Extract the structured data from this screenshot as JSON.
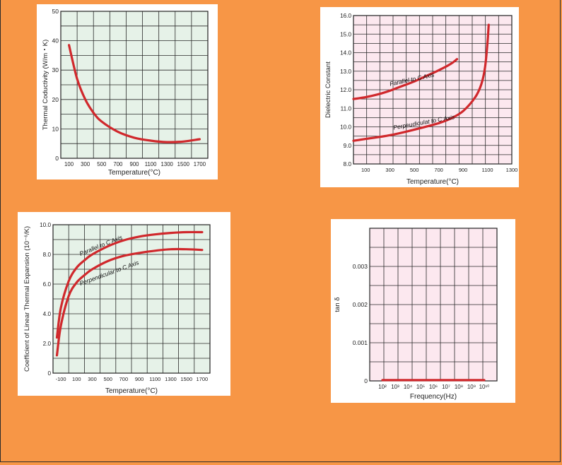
{
  "colors": {
    "page_bg": "#f79646",
    "green_plot": "#e6f2e8",
    "pink_plot": "#fce8ef",
    "curve": "#d0282c"
  },
  "chart_data": [
    {
      "id": "thermal-conductivity",
      "type": "line",
      "xlabel": "Temperature(°C)",
      "ylabel": "Thermal Coductivity (W/m・K)",
      "xlim": [
        0,
        1800
      ],
      "ylim": [
        0,
        50
      ],
      "xticks": [
        100,
        300,
        500,
        700,
        900,
        1100,
        1300,
        1500,
        1700
      ],
      "yticks": [
        0,
        10,
        20,
        30,
        40,
        50
      ],
      "grid": true,
      "series": [
        {
          "x": [
            100,
            200,
            300,
            400,
            500,
            700,
            900,
            1100,
            1300,
            1500,
            1700
          ],
          "y": [
            38.5,
            27,
            20,
            15.5,
            12.5,
            9,
            7,
            6,
            5.5,
            5.7,
            6.5
          ]
        }
      ]
    },
    {
      "id": "dielectric-constant",
      "type": "line",
      "xlabel": "Temperature(°C)",
      "ylabel": "Dielectric Constant",
      "xlim": [
        0,
        1300
      ],
      "ylim": [
        8.0,
        16.0
      ],
      "xticks": [
        100,
        300,
        500,
        700,
        900,
        1100,
        1300
      ],
      "yticks": [
        "8.0",
        "9.0",
        "10.0",
        "11.0",
        "12.0",
        "13.0",
        "14.0",
        "15.0",
        "16.0"
      ],
      "grid": true,
      "series": [
        {
          "name": "Parallel to C Axis",
          "x": [
            0,
            100,
            200,
            300,
            400,
            500,
            600,
            700,
            800,
            850
          ],
          "y": [
            11.5,
            11.6,
            11.75,
            11.95,
            12.2,
            12.45,
            12.75,
            13.05,
            13.4,
            13.65
          ]
        },
        {
          "name": "Perpendicular to C Axis",
          "x": [
            0,
            100,
            300,
            500,
            700,
            800,
            900,
            1000,
            1050,
            1080,
            1100,
            1110
          ],
          "y": [
            9.25,
            9.35,
            9.55,
            9.85,
            10.2,
            10.45,
            10.85,
            11.6,
            12.3,
            13.2,
            14.5,
            15.5
          ]
        }
      ],
      "annotations": [
        "Parallel to C Axis",
        "Perpeudiculat to C Axis"
      ]
    },
    {
      "id": "thermal-expansion",
      "type": "line",
      "xlabel": "Temperature(°C)",
      "ylabel": "Coefficient of Linear Thermal Expansion (10⁻⁶/K)",
      "xlim": [
        -200,
        1800
      ],
      "ylim": [
        0,
        10.0
      ],
      "xticks": [
        -100,
        100,
        300,
        500,
        700,
        900,
        1100,
        1300,
        1500,
        1700
      ],
      "ytick_labels": [
        "0",
        "2.0",
        "4.0",
        "6.0",
        "8.0",
        "10.0"
      ],
      "grid": true,
      "series": [
        {
          "name": "Parallel to C Axis",
          "x": [
            -150,
            -100,
            0,
            100,
            200,
            300,
            500,
            700,
            900,
            1100,
            1300,
            1500,
            1700
          ],
          "y": [
            2.4,
            4.4,
            6.2,
            7.1,
            7.6,
            8.0,
            8.55,
            8.95,
            9.2,
            9.35,
            9.45,
            9.5,
            9.5
          ]
        },
        {
          "name": "Perpendicular to C Axis",
          "x": [
            -150,
            -100,
            0,
            100,
            200,
            300,
            500,
            700,
            900,
            1100,
            1300,
            1500,
            1700
          ],
          "y": [
            1.2,
            3.2,
            5.2,
            6.1,
            6.6,
            7.0,
            7.55,
            7.9,
            8.1,
            8.25,
            8.35,
            8.35,
            8.3
          ]
        }
      ],
      "annotations": [
        "Parallel to C Axis",
        "Perpendicular to C Axis"
      ]
    },
    {
      "id": "tan-delta",
      "type": "line",
      "xlabel": "Frequency(Hz)",
      "ylabel": "tan δ",
      "xlim": [
        1,
        11
      ],
      "ylim": [
        0,
        0.004
      ],
      "xtick_labels": [
        "10²",
        "10³",
        "10⁴",
        "10⁵",
        "10⁶",
        "10⁷",
        "10⁸",
        "10⁹",
        "10¹⁰"
      ],
      "ytick_labels": [
        "0",
        "0.001",
        "0.002",
        "0.003"
      ],
      "grid": true,
      "series": [
        {
          "x": [
            2,
            10
          ],
          "y": [
            2e-05,
            2e-05
          ]
        }
      ]
    }
  ]
}
